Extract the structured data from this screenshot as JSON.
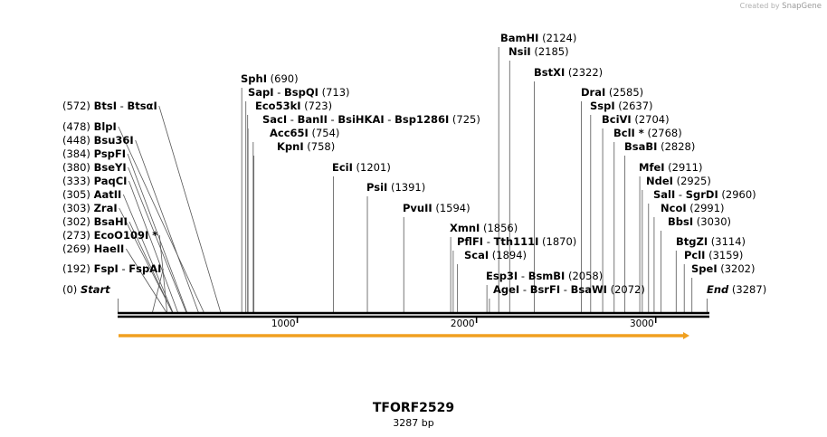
{
  "credit": {
    "created_by": "Created by",
    "brand": "SnapGene"
  },
  "map": {
    "name": "TFORF2529",
    "length_label": "3287 bp",
    "length": 3287,
    "scale_ticks": [
      1000,
      2000,
      3000
    ],
    "feature_color": "#f0a020"
  },
  "sites": [
    {
      "pos": 0,
      "enzymes": [
        "Start"
      ],
      "special": true
    },
    {
      "pos": 192,
      "enzymes": [
        "FspI",
        "FspAI"
      ]
    },
    {
      "pos": 269,
      "enzymes": [
        "HaeII"
      ]
    },
    {
      "pos": 273,
      "enzymes": [
        "EcoO109I *"
      ]
    },
    {
      "pos": 302,
      "enzymes": [
        "BsaHI"
      ]
    },
    {
      "pos": 303,
      "enzymes": [
        "ZraI"
      ]
    },
    {
      "pos": 305,
      "enzymes": [
        "AatII"
      ]
    },
    {
      "pos": 333,
      "enzymes": [
        "PaqCI"
      ]
    },
    {
      "pos": 380,
      "enzymes": [
        "BseYI"
      ]
    },
    {
      "pos": 384,
      "enzymes": [
        "PspFI"
      ]
    },
    {
      "pos": 448,
      "enzymes": [
        "Bsu36I"
      ]
    },
    {
      "pos": 478,
      "enzymes": [
        "BlpI"
      ]
    },
    {
      "pos": 572,
      "enzymes": [
        "BtsI",
        "BtsαI"
      ]
    },
    {
      "pos": 690,
      "enzymes": [
        "SphI"
      ]
    },
    {
      "pos": 713,
      "enzymes": [
        "SapI",
        "BspQI"
      ]
    },
    {
      "pos": 723,
      "enzymes": [
        "Eco53kI"
      ]
    },
    {
      "pos": 725,
      "enzymes": [
        "SacI",
        "BanII",
        "BsiHKAI",
        "Bsp1286I"
      ]
    },
    {
      "pos": 754,
      "enzymes": [
        "Acc65I"
      ]
    },
    {
      "pos": 758,
      "enzymes": [
        "KpnI"
      ]
    },
    {
      "pos": 1201,
      "enzymes": [
        "EciI"
      ]
    },
    {
      "pos": 1391,
      "enzymes": [
        "PsiI"
      ]
    },
    {
      "pos": 1594,
      "enzymes": [
        "PvuII"
      ]
    },
    {
      "pos": 1856,
      "enzymes": [
        "XmnI"
      ]
    },
    {
      "pos": 1870,
      "enzymes": [
        "PflFI",
        "Tth111I"
      ]
    },
    {
      "pos": 1894,
      "enzymes": [
        "ScaI"
      ]
    },
    {
      "pos": 2058,
      "enzymes": [
        "Esp3I",
        "BsmBI"
      ]
    },
    {
      "pos": 2072,
      "enzymes": [
        "AgeI",
        "BsrFI",
        "BsaWI"
      ]
    },
    {
      "pos": 2124,
      "enzymes": [
        "BamHI"
      ]
    },
    {
      "pos": 2185,
      "enzymes": [
        "NsiI"
      ]
    },
    {
      "pos": 2322,
      "enzymes": [
        "BstXI"
      ]
    },
    {
      "pos": 2585,
      "enzymes": [
        "DraI"
      ]
    },
    {
      "pos": 2637,
      "enzymes": [
        "SspI"
      ]
    },
    {
      "pos": 2704,
      "enzymes": [
        "BciVI"
      ]
    },
    {
      "pos": 2768,
      "enzymes": [
        "BclI *"
      ]
    },
    {
      "pos": 2828,
      "enzymes": [
        "BsaBI"
      ]
    },
    {
      "pos": 2911,
      "enzymes": [
        "MfeI"
      ]
    },
    {
      "pos": 2925,
      "enzymes": [
        "NdeI"
      ]
    },
    {
      "pos": 2960,
      "enzymes": [
        "SalI",
        "SgrDI"
      ]
    },
    {
      "pos": 2991,
      "enzymes": [
        "NcoI"
      ]
    },
    {
      "pos": 3030,
      "enzymes": [
        "BbsI"
      ]
    },
    {
      "pos": 3114,
      "enzymes": [
        "BtgZI"
      ]
    },
    {
      "pos": 3159,
      "enzymes": [
        "PclI"
      ]
    },
    {
      "pos": 3202,
      "enzymes": [
        "SpeI"
      ]
    },
    {
      "pos": 3287,
      "enzymes": [
        "End"
      ],
      "special": true
    }
  ]
}
